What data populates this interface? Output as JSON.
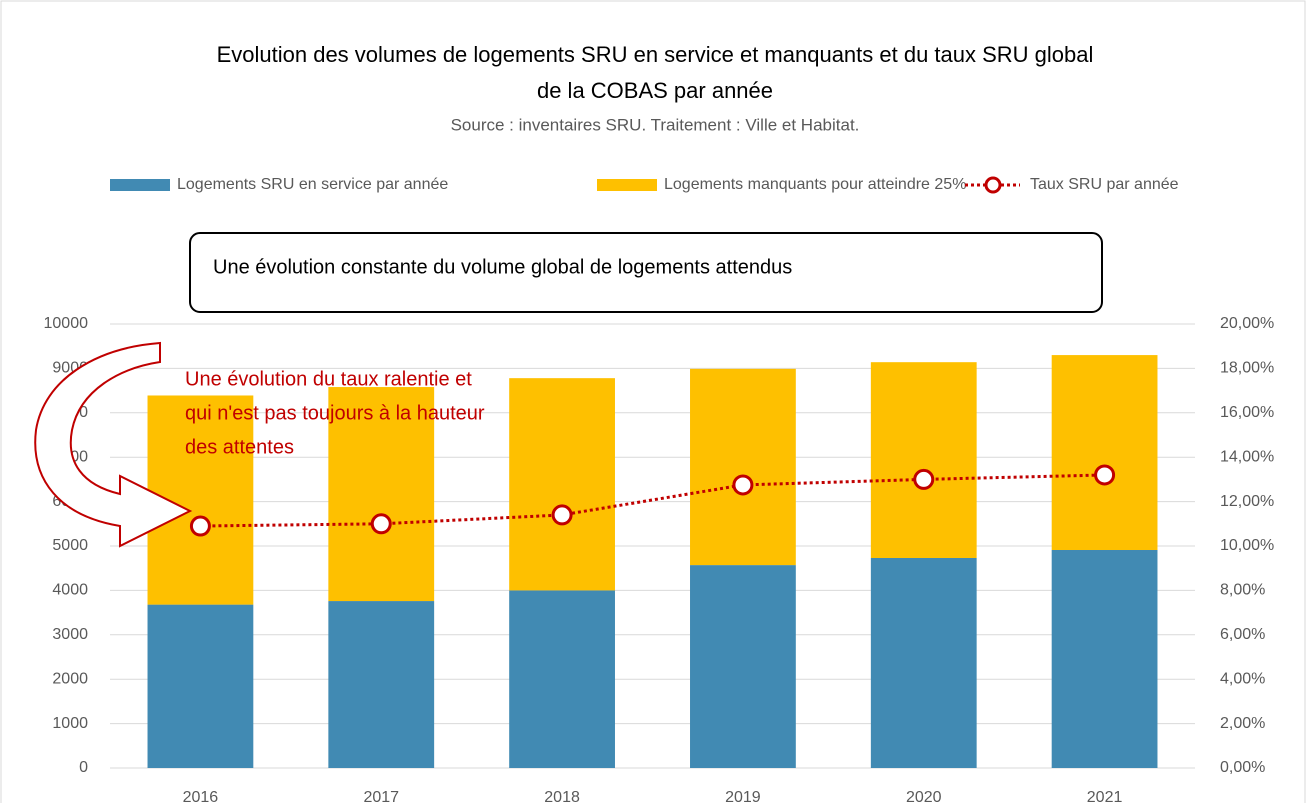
{
  "chart_data": {
    "type": "bar",
    "stacked": true,
    "title": [
      "Evolution des volumes de logements SRU en service et manquants et du taux SRU global",
      "de la COBAS par année"
    ],
    "subtitle": "Source : inventaires SRU. Traitement : Ville et Habitat.",
    "categories": [
      "2016",
      "2017",
      "2018",
      "2019",
      "2020",
      "2021"
    ],
    "series": [
      {
        "name": "Logements SRU en service par année",
        "color": "#418ab3",
        "values": [
          3680,
          3760,
          4000,
          4570,
          4730,
          4910
        ]
      },
      {
        "name": "Logements manquants pour atteindre 25%",
        "color": "#fec000",
        "values": [
          4710,
          4820,
          4780,
          4420,
          4410,
          4390
        ]
      },
      {
        "name": "Taux SRU par année",
        "color": "#c00000",
        "type": "line",
        "axis": "y2",
        "values": [
          10.9,
          11.0,
          11.4,
          12.75,
          13.0,
          13.2
        ]
      }
    ],
    "ylim": [
      0,
      10000
    ],
    "yticks": [
      0,
      1000,
      2000,
      3000,
      4000,
      5000,
      6000,
      7000,
      8000,
      9000,
      10000
    ],
    "y2lim": [
      0,
      20
    ],
    "y2ticks": [
      {
        "value": 0,
        "label": "0,00%"
      },
      {
        "value": 2,
        "label": "2,00%"
      },
      {
        "value": 4,
        "label": "4,00%"
      },
      {
        "value": 6,
        "label": "6,00%"
      },
      {
        "value": 8,
        "label": "8,00%"
      },
      {
        "value": 10,
        "label": "10,00%"
      },
      {
        "value": 12,
        "label": "12,00%"
      },
      {
        "value": 14,
        "label": "14,00%"
      },
      {
        "value": 16,
        "label": "16,00%"
      },
      {
        "value": 18,
        "label": "18,00%"
      },
      {
        "value": 20,
        "label": "20,00%"
      }
    ],
    "grid": true,
    "legend": "top",
    "annotations": {
      "box": "Une évolution constante du volume global de logements attendus",
      "callout": [
        "Une évolution du taux ralentie et",
        "qui n'est pas toujours à la hauteur",
        "des attentes"
      ]
    }
  }
}
